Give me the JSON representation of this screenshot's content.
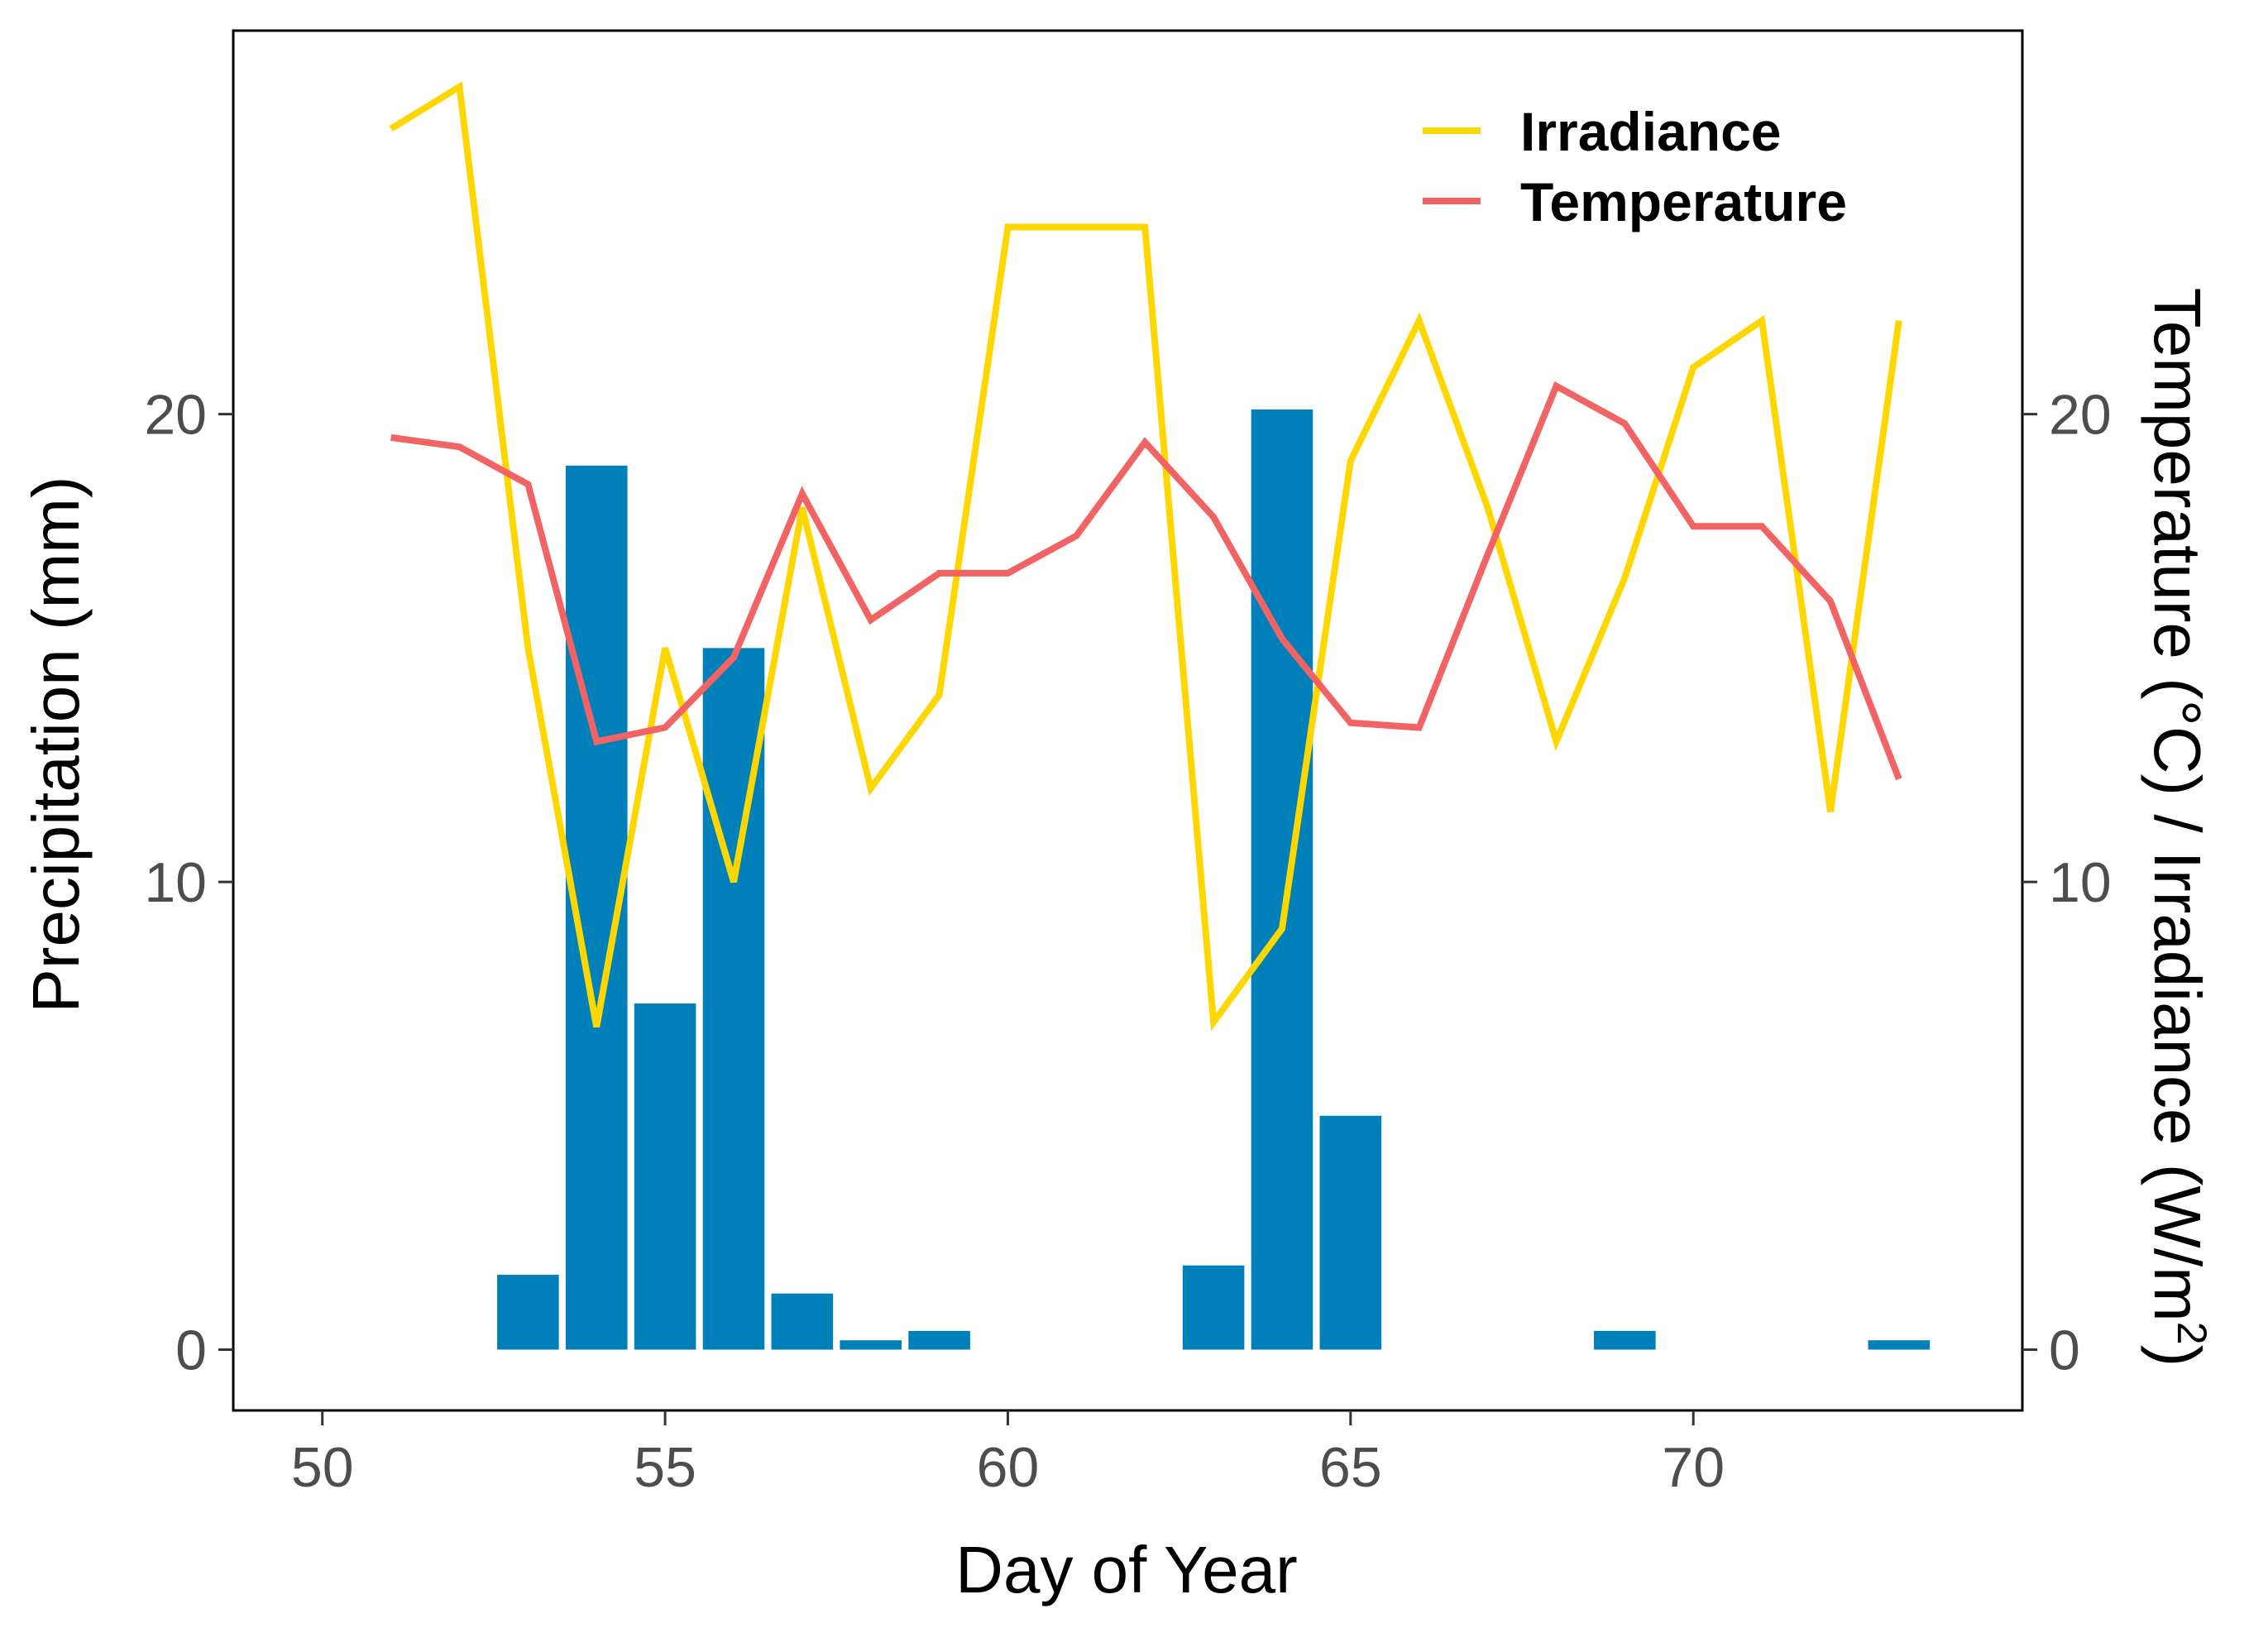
{
  "chart_data": {
    "type": "bar+line",
    "title": "",
    "xlabel": "Day of Year",
    "ylabel_left": "Precipitation (mm)",
    "ylabel_right_parts": [
      "Temperature (°C) / Irradiance (W/m",
      "2",
      ")"
    ],
    "xlim": [
      48.7,
      74.8
    ],
    "ylim": [
      -1.3,
      28.2
    ],
    "x_ticks": [
      "50",
      "55",
      "60",
      "65",
      "70"
    ],
    "y_ticks": [
      "0",
      "10",
      "20"
    ],
    "y_ticks_right": [
      "0",
      "10",
      "20"
    ],
    "legend_position": "top-right",
    "grid": false,
    "bars": {
      "name": "Precipitation",
      "color": "#0080b8",
      "x": [
        53,
        54,
        55,
        56,
        57,
        58,
        59,
        63,
        64,
        65,
        69,
        73
      ],
      "values": [
        1.6,
        18.9,
        7.4,
        15.0,
        1.2,
        0.2,
        0.4,
        1.8,
        20.1,
        5.0,
        0.4,
        0.2
      ]
    },
    "series": [
      {
        "name": "Irradiance",
        "color": "#ffd700",
        "x": [
          51,
          52,
          53,
          54,
          55,
          56,
          57,
          58,
          59,
          60,
          61,
          62,
          63,
          64,
          65,
          66,
          67,
          68,
          69,
          70,
          71,
          72,
          73
        ],
        "values": [
          26.1,
          27.0,
          15.0,
          6.9,
          15.0,
          10.0,
          18.0,
          12.0,
          14.0,
          24.0,
          24.0,
          24.0,
          7.0,
          9.0,
          19.0,
          22.0,
          18.0,
          13.0,
          16.5,
          21.0,
          22.0,
          11.5,
          22.0
        ]
      },
      {
        "name": "Temperature",
        "color": "#f26464",
        "x": [
          51,
          52,
          53,
          54,
          55,
          56,
          57,
          58,
          59,
          60,
          61,
          62,
          63,
          64,
          65,
          66,
          67,
          68,
          69,
          70,
          71,
          72,
          73
        ],
        "values": [
          19.5,
          19.3,
          18.5,
          13.0,
          13.3,
          14.8,
          18.3,
          15.6,
          16.6,
          16.6,
          17.4,
          19.4,
          17.8,
          15.2,
          13.4,
          13.3,
          17.0,
          20.6,
          19.8,
          17.6,
          17.6,
          16.0,
          12.2
        ]
      }
    ]
  }
}
